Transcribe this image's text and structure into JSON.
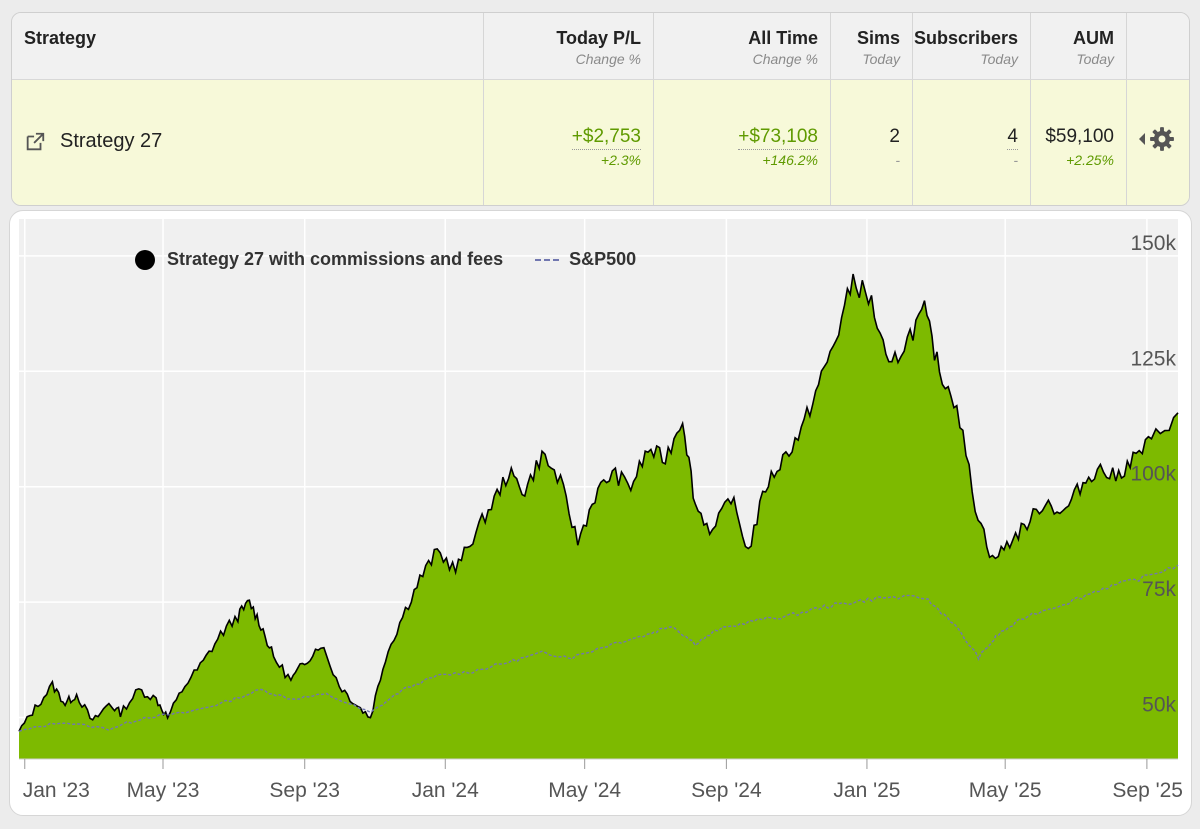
{
  "table": {
    "headers": [
      {
        "main": "Strategy",
        "sub": ""
      },
      {
        "main": "Today P/L",
        "sub": "Change %"
      },
      {
        "main": "All Time",
        "sub": "Change %"
      },
      {
        "main": "Sims",
        "sub": "Today"
      },
      {
        "main": "Subscribers",
        "sub": "Today"
      },
      {
        "main": "AUM",
        "sub": "Today"
      }
    ],
    "row": {
      "strategy": "Strategy 27",
      "today_pl": "+$2,753",
      "today_pct": "+2.3%",
      "alltime_pl": "+$73,108",
      "alltime_pct": "+146.2%",
      "sims": "2",
      "sims_sub": "-",
      "subscribers": "4",
      "subscribers_sub": "-",
      "aum": "$59,100",
      "aum_pct": "+2.25%"
    },
    "icons": [
      "external-link-icon",
      "caret-left-icon",
      "gear-icon"
    ]
  },
  "colors": {
    "positive": "#5f9a00",
    "strategy_fill": "#7dba00",
    "sp500_line": "#7177b0",
    "row_bg": "#f7f9d9"
  },
  "chart_data": {
    "type": "area",
    "legend": [
      "Strategy 27 with commissions and fees",
      "S&P500"
    ],
    "legend_position": "top-left",
    "x_ticks": [
      "Jan '23",
      "May '23",
      "Sep '23",
      "Jan '24",
      "May '24",
      "Sep '24",
      "Jan '25",
      "May '25",
      "Sep '25"
    ],
    "y_ticks": [
      "50k",
      "75k",
      "100k",
      "125k",
      "150k"
    ],
    "y_tick_values": [
      50000,
      75000,
      100000,
      125000,
      150000
    ],
    "ylim": [
      41000,
      158000
    ],
    "xlim": [
      "2022-12-27",
      "2025-09-28"
    ],
    "grid": true,
    "series": [
      {
        "name": "Strategy 27 with commissions and fees",
        "style": "area",
        "x": [
          "2022-12-27",
          "2023-01-10",
          "2023-01-25",
          "2023-02-05",
          "2023-02-15",
          "2023-03-01",
          "2023-03-15",
          "2023-03-25",
          "2023-04-10",
          "2023-04-25",
          "2023-05-05",
          "2023-05-20",
          "2023-06-05",
          "2023-06-20",
          "2023-07-05",
          "2023-07-15",
          "2023-07-25",
          "2023-08-05",
          "2023-08-20",
          "2023-09-01",
          "2023-09-15",
          "2023-10-01",
          "2023-10-15",
          "2023-10-28",
          "2023-11-10",
          "2023-11-25",
          "2023-12-10",
          "2023-12-25",
          "2024-01-10",
          "2024-01-25",
          "2024-02-10",
          "2024-02-25",
          "2024-03-10",
          "2024-03-25",
          "2024-04-10",
          "2024-04-25",
          "2024-05-10",
          "2024-05-25",
          "2024-06-10",
          "2024-06-25",
          "2024-07-10",
          "2024-07-25",
          "2024-08-05",
          "2024-08-20",
          "2024-09-05",
          "2024-09-20",
          "2024-10-05",
          "2024-10-20",
          "2024-11-05",
          "2024-11-20",
          "2024-12-05",
          "2024-12-20",
          "2025-01-05",
          "2025-01-20",
          "2025-02-05",
          "2025-02-20",
          "2025-03-05",
          "2025-03-20",
          "2025-04-05",
          "2025-04-20",
          "2025-05-05",
          "2025-05-20",
          "2025-06-05",
          "2025-06-20",
          "2025-07-05",
          "2025-07-20",
          "2025-08-05",
          "2025-08-20",
          "2025-09-05",
          "2025-09-28"
        ],
        "values": [
          47000,
          52000,
          57000,
          53000,
          55000,
          49000,
          53000,
          51000,
          56000,
          54000,
          50000,
          57000,
          62000,
          68000,
          72000,
          75000,
          70000,
          63000,
          58000,
          62000,
          66000,
          57000,
          53000,
          50000,
          63000,
          72000,
          80000,
          86000,
          82000,
          89000,
          96000,
          103000,
          99000,
          107000,
          101000,
          88000,
          98000,
          103000,
          100000,
          108000,
          106000,
          115000,
          96000,
          90000,
          98000,
          86000,
          100000,
          106000,
          112000,
          122000,
          132000,
          145000,
          140000,
          125000,
          132000,
          138000,
          125000,
          118000,
          96000,
          84000,
          88000,
          92000,
          97000,
          94000,
          100000,
          104000,
          102000,
          106000,
          110000,
          116000
        ]
      },
      {
        "name": "S&P500",
        "style": "dashed-line",
        "x": [
          "2022-12-27",
          "2023-02-01",
          "2023-03-15",
          "2023-04-15",
          "2023-05-20",
          "2023-06-20",
          "2023-07-25",
          "2023-08-20",
          "2023-09-20",
          "2023-10-28",
          "2023-11-25",
          "2023-12-25",
          "2024-01-25",
          "2024-02-25",
          "2024-03-25",
          "2024-04-20",
          "2024-05-25",
          "2024-06-25",
          "2024-07-15",
          "2024-08-05",
          "2024-08-25",
          "2024-09-25",
          "2024-10-25",
          "2024-11-25",
          "2024-12-20",
          "2025-01-15",
          "2025-02-20",
          "2025-03-15",
          "2025-04-08",
          "2025-04-25",
          "2025-05-20",
          "2025-06-25",
          "2025-07-25",
          "2025-08-25",
          "2025-09-28"
        ],
        "values": [
          47000,
          49000,
          47500,
          50000,
          51000,
          53000,
          56000,
          54000,
          55000,
          51000,
          56000,
          59000,
          60000,
          62000,
          64000,
          63000,
          66000,
          68000,
          70000,
          66000,
          69000,
          71000,
          72000,
          74000,
          75000,
          76000,
          76000,
          71000,
          63000,
          68000,
          72000,
          75000,
          78000,
          80000,
          83000
        ]
      }
    ]
  }
}
